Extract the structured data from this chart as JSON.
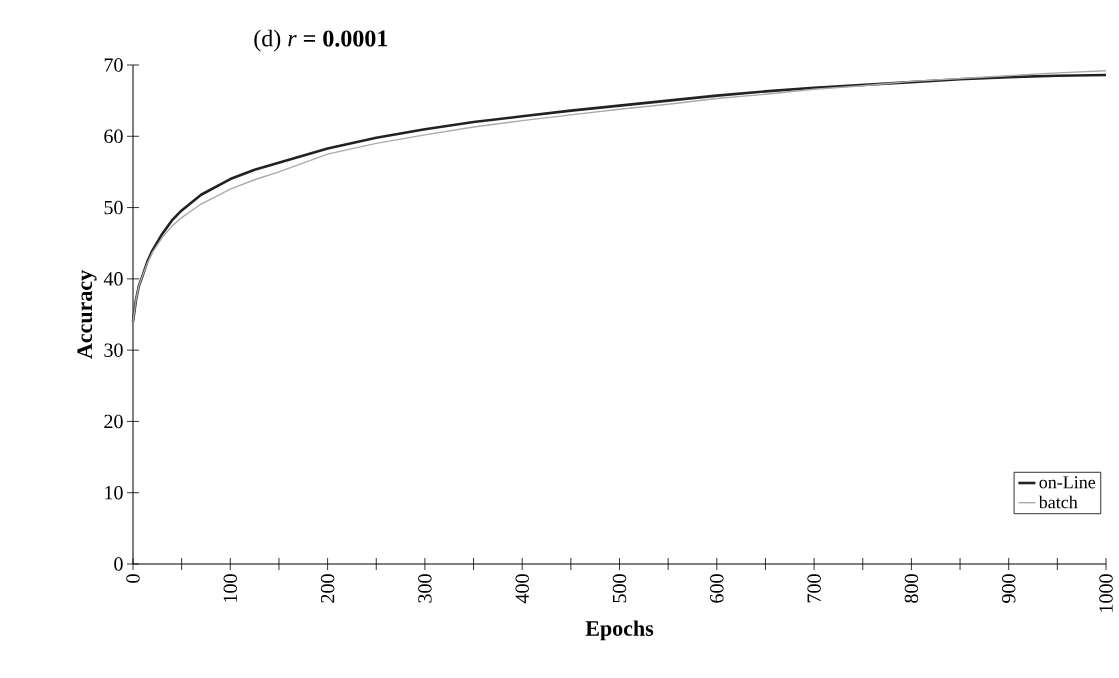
{
  "chart_data": {
    "type": "line",
    "title": "(d) *r* **= 0.0001**",
    "xlabel": "Epochs",
    "ylabel": "Accuracy",
    "xlim": [
      0,
      1000
    ],
    "ylim": [
      0,
      70
    ],
    "xticks": [
      0,
      {
        "value": 50,
        "label": null
      },
      100,
      {
        "value": 150,
        "label": null
      },
      200,
      {
        "value": 250,
        "label": null
      },
      300,
      {
        "value": 350,
        "label": null
      },
      400,
      {
        "value": 450,
        "label": null
      },
      500,
      {
        "value": 550,
        "label": null
      },
      600,
      {
        "value": 650,
        "label": null
      },
      700,
      {
        "value": 750,
        "label": null
      },
      800,
      {
        "value": 850,
        "label": null
      },
      900,
      {
        "value": 950,
        "label": null
      },
      1000
    ],
    "yticks": [
      0,
      10,
      20,
      30,
      40,
      50,
      60,
      70
    ],
    "grid": false,
    "legend": "bottom right",
    "marker": "none",
    "line_style": "solid",
    "x": [
      0,
      3,
      6,
      10,
      15,
      20,
      30,
      40,
      50,
      70,
      100,
      125,
      150,
      200,
      250,
      300,
      350,
      400,
      450,
      500,
      550,
      600,
      650,
      700,
      750,
      800,
      850,
      900,
      950,
      1000
    ],
    "series": [
      {
        "name": "on-Line",
        "color": "#222222",
        "values": [
          34,
          37,
          39,
          40.5,
          42.5,
          44,
          46.3,
          48.2,
          49.6,
          51.8,
          54,
          55.3,
          56.3,
          58.3,
          59.8,
          61,
          62,
          62.8,
          63.6,
          64.3,
          65,
          65.7,
          66.3,
          66.8,
          67.2,
          67.6,
          68,
          68.3,
          68.5,
          68.6
        ]
      },
      {
        "name": "batch",
        "color": "#aaaaaa",
        "values": [
          34,
          37,
          39,
          40.5,
          42.3,
          43.7,
          45.8,
          47.4,
          48.6,
          50.5,
          52.6,
          53.9,
          55,
          57.5,
          59,
          60.2,
          61.3,
          62.2,
          63,
          63.8,
          64.5,
          65.3,
          65.9,
          66.6,
          67.1,
          67.7,
          68.1,
          68.5,
          68.9,
          69.2
        ]
      }
    ]
  }
}
